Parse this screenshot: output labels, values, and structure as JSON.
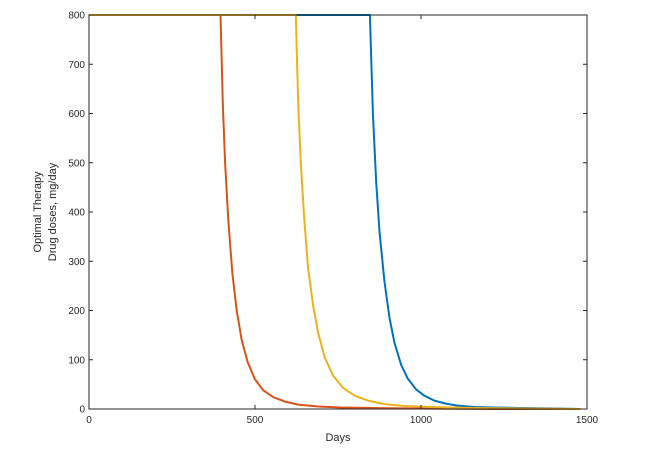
{
  "chart_data": {
    "type": "line",
    "title": "",
    "xlabel": "Days",
    "ylabel_lines": [
      "Optimal Therapy",
      "Drug doses, mg/day"
    ],
    "xlim": [
      0,
      1500
    ],
    "ylim": [
      0,
      800
    ],
    "xticks": [
      0,
      500,
      1000,
      1500
    ],
    "yticks": [
      0,
      100,
      200,
      300,
      400,
      500,
      600,
      700,
      800
    ],
    "grid": false,
    "legend": "none",
    "series": [
      {
        "color": "#0072BD",
        "x": [
          0,
          846,
          855,
          865,
          875,
          890,
          905,
          920,
          940,
          960,
          985,
          1010,
          1040,
          1075,
          1110,
          1160,
          1220,
          1300,
          1400,
          1480
        ],
        "y": [
          800,
          800,
          600,
          460,
          360,
          258,
          185,
          135,
          90,
          62,
          40,
          27,
          17,
          11,
          7,
          4,
          3,
          2,
          1,
          0
        ]
      },
      {
        "color": "#D95319",
        "x": [
          0,
          396,
          403,
          410,
          420,
          432,
          445,
          460,
          478,
          500,
          525,
          555,
          590,
          630,
          690,
          760,
          860,
          1000,
          1200,
          1480
        ],
        "y": [
          800,
          800,
          620,
          500,
          380,
          275,
          200,
          140,
          95,
          60,
          38,
          24,
          15,
          9,
          5,
          3,
          2,
          1,
          0,
          0
        ]
      },
      {
        "color": "#EDB120",
        "x": [
          0,
          623,
          630,
          638,
          648,
          660,
          675,
          690,
          710,
          735,
          765,
          800,
          840,
          890,
          950,
          1030,
          1150,
          1300,
          1480
        ],
        "y": [
          800,
          800,
          620,
          500,
          390,
          285,
          210,
          155,
          105,
          68,
          43,
          27,
          17,
          10,
          6,
          4,
          2,
          1,
          0
        ]
      }
    ]
  }
}
